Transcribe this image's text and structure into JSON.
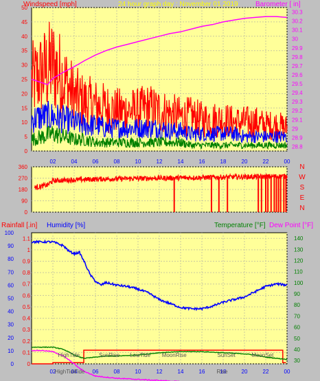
{
  "chart_data": [
    {
      "type": "line",
      "title": "24 hour graph day : November 01 2019",
      "y_left_label": "Windspeed [mph]",
      "y_right_label": "Barometer [ in]",
      "ylim_left": [
        0,
        50
      ],
      "ylim_right": [
        28.75,
        30.35
      ],
      "xlim": [
        0,
        24
      ],
      "x_tick_labels": [
        "02",
        "04",
        "06",
        "08",
        "10",
        "12",
        "14",
        "16",
        "18",
        "20",
        "22",
        "00"
      ],
      "y_left_ticks": [
        0,
        5,
        10,
        15,
        20,
        25,
        30,
        35,
        40,
        45,
        50
      ],
      "y_right_ticks": [
        "28.8",
        "28.9",
        "29",
        "29.1",
        "29.2",
        "29.3",
        "29.4",
        "29.5",
        "29.6",
        "29.7",
        "29.8",
        "29.9",
        "30",
        "30.1",
        "30.2",
        "30.3"
      ],
      "grid": true,
      "colors": {
        "gust": "#ff0000",
        "average": "#0000ff",
        "low": "#008000",
        "barometer": "#ff00ff",
        "title": "#ffff00",
        "background": "#ffff99"
      },
      "series": [
        {
          "id": "gust",
          "x": [
            0,
            1,
            2,
            3,
            4,
            5,
            6,
            7,
            8,
            9,
            10,
            11,
            12,
            13,
            14,
            15,
            16,
            17,
            18,
            19,
            20,
            21,
            22,
            23,
            24
          ],
          "y": [
            24,
            27,
            30,
            25,
            19,
            17,
            16,
            15,
            14,
            14,
            14,
            15,
            14,
            13,
            12,
            12,
            11,
            11,
            11,
            10,
            10,
            10,
            9,
            9,
            8
          ]
        },
        {
          "id": "average",
          "x": [
            0,
            1,
            2,
            3,
            4,
            5,
            6,
            7,
            8,
            9,
            10,
            11,
            12,
            13,
            14,
            15,
            16,
            17,
            18,
            19,
            20,
            21,
            22,
            23,
            24
          ],
          "y": [
            11,
            12,
            12,
            11,
            10,
            9,
            9,
            8,
            8,
            8,
            8,
            8,
            8,
            7,
            7,
            6,
            6,
            6,
            6,
            6,
            5,
            5,
            5,
            5,
            5
          ]
        },
        {
          "id": "low",
          "x": [
            0,
            1,
            2,
            3,
            4,
            5,
            6,
            7,
            8,
            9,
            10,
            11,
            12,
            13,
            14,
            15,
            16,
            17,
            18,
            19,
            20,
            21,
            22,
            23,
            24
          ],
          "y": [
            4,
            5,
            6,
            5,
            4,
            4,
            3,
            3,
            3,
            3,
            3,
            3,
            3,
            3,
            3,
            2,
            2,
            2,
            2,
            2,
            2,
            2,
            2,
            2,
            2
          ]
        },
        {
          "id": "barometer",
          "axis": "right",
          "x": [
            0,
            0.5,
            1,
            1.5,
            2,
            3,
            4,
            5,
            6,
            7,
            8,
            9,
            10,
            11,
            12,
            13,
            14,
            15,
            16,
            17,
            18,
            19,
            20,
            21,
            22,
            23,
            24
          ],
          "y": [
            29.55,
            29.53,
            29.51,
            29.49,
            29.56,
            29.63,
            29.69,
            29.76,
            29.82,
            29.87,
            29.91,
            29.94,
            29.97,
            30.0,
            30.03,
            30.06,
            30.08,
            30.11,
            30.14,
            30.16,
            30.19,
            30.21,
            30.23,
            30.24,
            30.25,
            30.25,
            30.24
          ]
        }
      ]
    },
    {
      "type": "scatter",
      "y_right_labels": [
        "N",
        "W",
        "S",
        "E",
        "N"
      ],
      "ylim": [
        0,
        360
      ],
      "xlim": [
        0,
        24
      ],
      "y_ticks": [
        0,
        90,
        180,
        270,
        360
      ],
      "color": "#ff0000",
      "background": "#ffff99",
      "base_direction": [
        {
          "x": 0,
          "y": 190
        },
        {
          "x": 1.5,
          "y": 215
        },
        {
          "x": 2,
          "y": 250
        },
        {
          "x": 6,
          "y": 262
        },
        {
          "x": 12,
          "y": 270
        },
        {
          "x": 18,
          "y": 278
        },
        {
          "x": 24,
          "y": 285
        }
      ],
      "north_drops_x": [
        13.4,
        16.9,
        17.6,
        18.4,
        21.3,
        21.6,
        22,
        22.2,
        22.5,
        22.8,
        23,
        23.2,
        23.4,
        23.7,
        23.9
      ]
    },
    {
      "type": "line",
      "left_axis_labels": {
        "rainfall": "Rainfall [.in]",
        "humidity": "Humidity [%]"
      },
      "right_axis_labels": {
        "temperature": "Temperature [°F]",
        "dewpoint": "Dew Point [°F]"
      },
      "ylim_rainfall": [
        0,
        1.15
      ],
      "ylim_humidity": [
        0,
        100
      ],
      "ylim_temp": [
        27,
        145
      ],
      "xlim": [
        0,
        24
      ],
      "rain_ticks": [
        "0",
        "0.1",
        "0.2",
        "0.3",
        "0.4",
        "0.5",
        "0.6",
        "0.7",
        "0.8",
        "0.9",
        "1",
        "1.1"
      ],
      "humidity_ticks": [
        0,
        10,
        20,
        30,
        40,
        50,
        60,
        70,
        80,
        90,
        100
      ],
      "temp_ticks": [
        30,
        40,
        50,
        60,
        70,
        80,
        90,
        100,
        110,
        120,
        130,
        140
      ],
      "colors": {
        "rainfall": "#ff0000",
        "humidity": "#0000ff",
        "temperature": "#008000",
        "dewpoint": "#ff00ff",
        "background": "#ffff99"
      },
      "series": [
        {
          "id": "rainfall",
          "x": [
            0,
            2,
            2,
            4.9,
            4.9,
            23.6,
            23.6,
            23.9
          ],
          "y": [
            0,
            0,
            0.01,
            0.01,
            0.12,
            0.12,
            0.01,
            0.01
          ]
        },
        {
          "id": "humidity",
          "x": [
            0,
            1,
            2,
            3,
            3.5,
            4,
            4.5,
            5,
            5.5,
            6,
            6.5,
            7,
            8,
            9,
            10,
            11,
            12,
            13,
            14,
            15,
            16,
            17,
            18,
            19,
            20,
            21,
            22,
            23,
            24
          ],
          "y": [
            93,
            93,
            93,
            90,
            86,
            84,
            85,
            77,
            68,
            63,
            60,
            62,
            60,
            59,
            57,
            54,
            49,
            46,
            43,
            42,
            42,
            44,
            47,
            49,
            51,
            55,
            59,
            61,
            60
          ]
        },
        {
          "id": "temperature",
          "x": [
            0,
            1,
            2,
            3,
            4,
            4.5,
            5,
            6,
            7,
            8,
            10,
            12,
            14,
            15,
            16,
            18,
            20,
            21,
            22,
            23,
            24
          ],
          "y": [
            42,
            42,
            42,
            40,
            35,
            33,
            32,
            33,
            34,
            34,
            35,
            37,
            38,
            38,
            38,
            37,
            36,
            35,
            33,
            32,
            31
          ]
        },
        {
          "id": "dewpoint",
          "x": [
            0,
            1,
            2,
            3,
            4,
            4.5,
            5,
            6,
            7,
            8,
            10,
            12,
            14,
            16,
            18,
            20,
            22,
            24
          ],
          "y": [
            39,
            39,
            38,
            34,
            27,
            23,
            20,
            16,
            15,
            14,
            13,
            12,
            11,
            10,
            10,
            9,
            9,
            9
          ]
        }
      ],
      "annotations": [
        {
          "text": "HighTide",
          "x": 3.5,
          "pos": "inside"
        },
        {
          "text": "SunRise",
          "x": 7.3,
          "pos": "inside"
        },
        {
          "text": "LowTide",
          "x": 10.2,
          "pos": "inside"
        },
        {
          "text": "MoonRise",
          "x": 13.4,
          "pos": "inside"
        },
        {
          "text": "SunSet",
          "x": 18.3,
          "pos": "inside"
        },
        {
          "text": "MoonSet",
          "x": 21.7,
          "pos": "inside"
        },
        {
          "text": "HighTide",
          "x": 3.2,
          "pos": "below"
        },
        {
          "text": "Tide",
          "x": 4.5,
          "pos": "below"
        },
        {
          "text": "Rise",
          "x": 17.9,
          "pos": "below"
        }
      ]
    }
  ]
}
